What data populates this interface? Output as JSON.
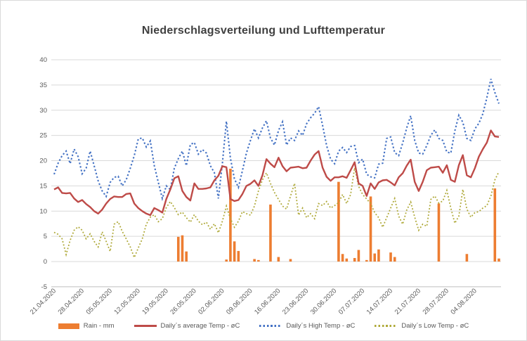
{
  "chart": {
    "title": "Niederschlagsverteilung und Lufttemperatur"
  },
  "legend": {
    "items": [
      {
        "label": "Rain - mm",
        "swatch": "bar"
      },
      {
        "label": "Daily´s average Temp - øC",
        "swatch": "solid"
      },
      {
        "label": "Daily´s High Temp - øC",
        "swatch": "dotted"
      },
      {
        "label": "Daily´s Low Temp - øC",
        "swatch": "dotted"
      }
    ]
  },
  "chart_data": {
    "type": "combo-bar-line",
    "x_unit": "daily",
    "start_date": "21.04.2020",
    "end_date": "10.08.2020",
    "x_tick_labels": [
      "21.04.2020",
      "28.04.2020",
      "05.05.2020",
      "12.05.2020",
      "19.05.2020",
      "26.05.2020",
      "02.06.2020",
      "09.06.2020",
      "16.06.2020",
      "23.06.2020",
      "30.06.2020",
      "07.07.2020",
      "14.07.2020",
      "21.07.2020",
      "28.07.2020",
      "04.08.2020"
    ],
    "x_tick_interval_days": 7,
    "y_axis": {
      "min": -5,
      "max": 40,
      "step": 5,
      "tick_labels": [
        "40",
        "35",
        "30",
        "25",
        "20",
        "15",
        "10",
        "5",
        "0",
        "-5"
      ]
    },
    "grid": "horizontal",
    "legend_position": "bottom",
    "colors": {
      "rain": "#ED7D31",
      "avg": "#BE4B48",
      "high": "#4472C4",
      "low": "#AFA939",
      "gridline": "#D9D9D9",
      "axis": "#BFBFBF",
      "labels": "#595959",
      "title": "#404040"
    },
    "series": [
      {
        "name": "Rain - mm",
        "type": "bar",
        "color": "#ED7D31",
        "values": [
          0,
          0,
          0,
          0,
          0,
          0,
          0,
          0,
          0,
          0,
          0,
          0,
          0,
          0,
          0,
          0,
          0,
          0,
          0,
          0,
          0,
          0,
          0,
          0,
          0,
          0,
          0,
          0,
          0,
          0,
          0,
          4.9,
          5.2,
          2,
          0,
          0,
          0,
          0,
          0,
          0,
          0,
          0,
          0,
          0.4,
          18.4,
          4,
          2.1,
          0,
          0,
          0,
          0.5,
          0.3,
          0,
          0,
          11.3,
          0,
          0.9,
          0,
          0,
          0.5,
          0,
          0,
          0,
          0,
          0,
          0,
          0,
          0,
          0,
          0,
          0,
          15.8,
          1.5,
          0.6,
          0,
          0.7,
          2.3,
          0,
          0.3,
          12.9,
          1.6,
          2.4,
          0,
          0,
          1.8,
          0.9,
          0,
          0,
          0,
          0,
          0,
          0,
          0,
          0,
          0,
          0,
          11.5,
          0,
          0,
          0,
          0,
          0,
          0,
          1.5,
          0,
          0,
          0,
          0,
          0,
          0,
          14.5,
          0.6
        ]
      },
      {
        "name": "Daily´s average Temp - øC",
        "type": "line",
        "style": "solid",
        "color": "#BE4B48",
        "values": [
          14.3,
          14.7,
          13.6,
          13.5,
          13.6,
          12.5,
          11.8,
          12.2,
          11.4,
          10.8,
          10,
          9.5,
          10.3,
          11.5,
          12.4,
          12.9,
          12.8,
          12.8,
          13.4,
          13.5,
          11.5,
          10.6,
          10,
          9.5,
          9.2,
          10.6,
          10.2,
          9.7,
          12.4,
          14.3,
          16.5,
          16.9,
          14,
          12.8,
          12.1,
          15.5,
          14.4,
          14.4,
          14.5,
          14.7,
          16.1,
          17,
          18.9,
          18.7,
          12.4,
          12,
          12.2,
          13.4,
          15,
          15.4,
          16.1,
          15,
          17.1,
          20.3,
          19.4,
          18.7,
          20.6,
          18.9,
          17.9,
          18.6,
          18.7,
          18.8,
          18.5,
          18.6,
          20,
          21.2,
          21.9,
          18.6,
          16.8,
          16,
          16.7,
          16.7,
          16.9,
          16.6,
          18.1,
          19.7,
          15.5,
          15,
          13,
          15.5,
          14.4,
          15.7,
          16.1,
          16.2,
          15.7,
          15.1,
          16.7,
          17.5,
          19,
          20.2,
          15.8,
          14,
          15.8,
          18.1,
          18.6,
          18.7,
          18.8,
          17.6,
          19.1,
          16.2,
          15.8,
          19.1,
          21.1,
          17.1,
          16.7,
          18.5,
          20.8,
          22.3,
          23.6,
          26,
          24.8,
          24.7
        ]
      },
      {
        "name": "Daily´s High Temp - øC",
        "type": "line",
        "style": "dotted",
        "color": "#4472C4",
        "values": [
          17.3,
          19.5,
          21,
          21.9,
          19.4,
          22.3,
          20.8,
          17.4,
          18.5,
          21.9,
          19,
          16,
          14,
          12.9,
          15.7,
          16.7,
          16.9,
          15,
          16.2,
          18.5,
          21,
          24.3,
          24.5,
          22.7,
          23.9,
          19,
          15.7,
          12.5,
          15,
          14.3,
          18.5,
          20.4,
          21.9,
          19,
          23.2,
          23.6,
          21.3,
          22.2,
          21.5,
          19,
          17.6,
          12.5,
          19.5,
          27.8,
          20.5,
          16.4,
          14.7,
          18,
          21.5,
          24,
          26.3,
          24.5,
          26.5,
          27.9,
          24.5,
          23.1,
          26,
          27.7,
          23.1,
          24.5,
          24,
          25.9,
          25,
          27.3,
          28.5,
          29.4,
          30.7,
          27,
          23,
          20.3,
          19.4,
          21.9,
          22.6,
          21.6,
          22.8,
          23,
          19.6,
          20.3,
          17.3,
          16.8,
          16.6,
          19.3,
          19.5,
          24.4,
          24.7,
          21.6,
          21,
          23.5,
          26.5,
          28.9,
          24,
          21.5,
          21.3,
          23,
          25,
          26.1,
          24.4,
          24,
          21.7,
          21.5,
          25.9,
          29,
          27.6,
          24.4,
          24,
          26.3,
          27.4,
          29.3,
          32.5,
          36.2,
          33.5,
          31.3
        ]
      },
      {
        "name": "Daily´s Low Temp - øC",
        "type": "line",
        "style": "dotted",
        "color": "#AFA939",
        "values": [
          5.8,
          5.4,
          4.5,
          1.4,
          4.2,
          6.2,
          6.9,
          6.2,
          4.5,
          5.5,
          4,
          2.9,
          5.9,
          4,
          2,
          7.4,
          7.9,
          6,
          4.5,
          2.9,
          0.8,
          2.7,
          4.5,
          7.4,
          8.8,
          9.3,
          7.9,
          8.5,
          10.7,
          11.9,
          10.7,
          9.3,
          9.8,
          8.7,
          7.8,
          9.3,
          8,
          7.3,
          7.8,
          6.4,
          7.5,
          5.7,
          8,
          11,
          8.5,
          6.8,
          8,
          9.9,
          9.5,
          9.2,
          11,
          14,
          16.2,
          17.6,
          15.5,
          13.7,
          12.3,
          11,
          10.4,
          13,
          15.5,
          9.2,
          10.6,
          8.7,
          9.5,
          8.5,
          11.5,
          11.1,
          11.9,
          10.6,
          11.1,
          11.7,
          13.3,
          11.5,
          13.3,
          18.6,
          14.9,
          13.3,
          12.4,
          11.5,
          9.7,
          8.7,
          6.8,
          8.7,
          10.6,
          12.5,
          9,
          7.4,
          10.2,
          11.8,
          8.8,
          6.2,
          7.4,
          7,
          12.3,
          13,
          11.6,
          12,
          14.1,
          10.6,
          7.6,
          9,
          14.3,
          10.4,
          8.8,
          9.7,
          9.9,
          10.6,
          11.1,
          13,
          16.2,
          17.8
        ]
      }
    ]
  }
}
